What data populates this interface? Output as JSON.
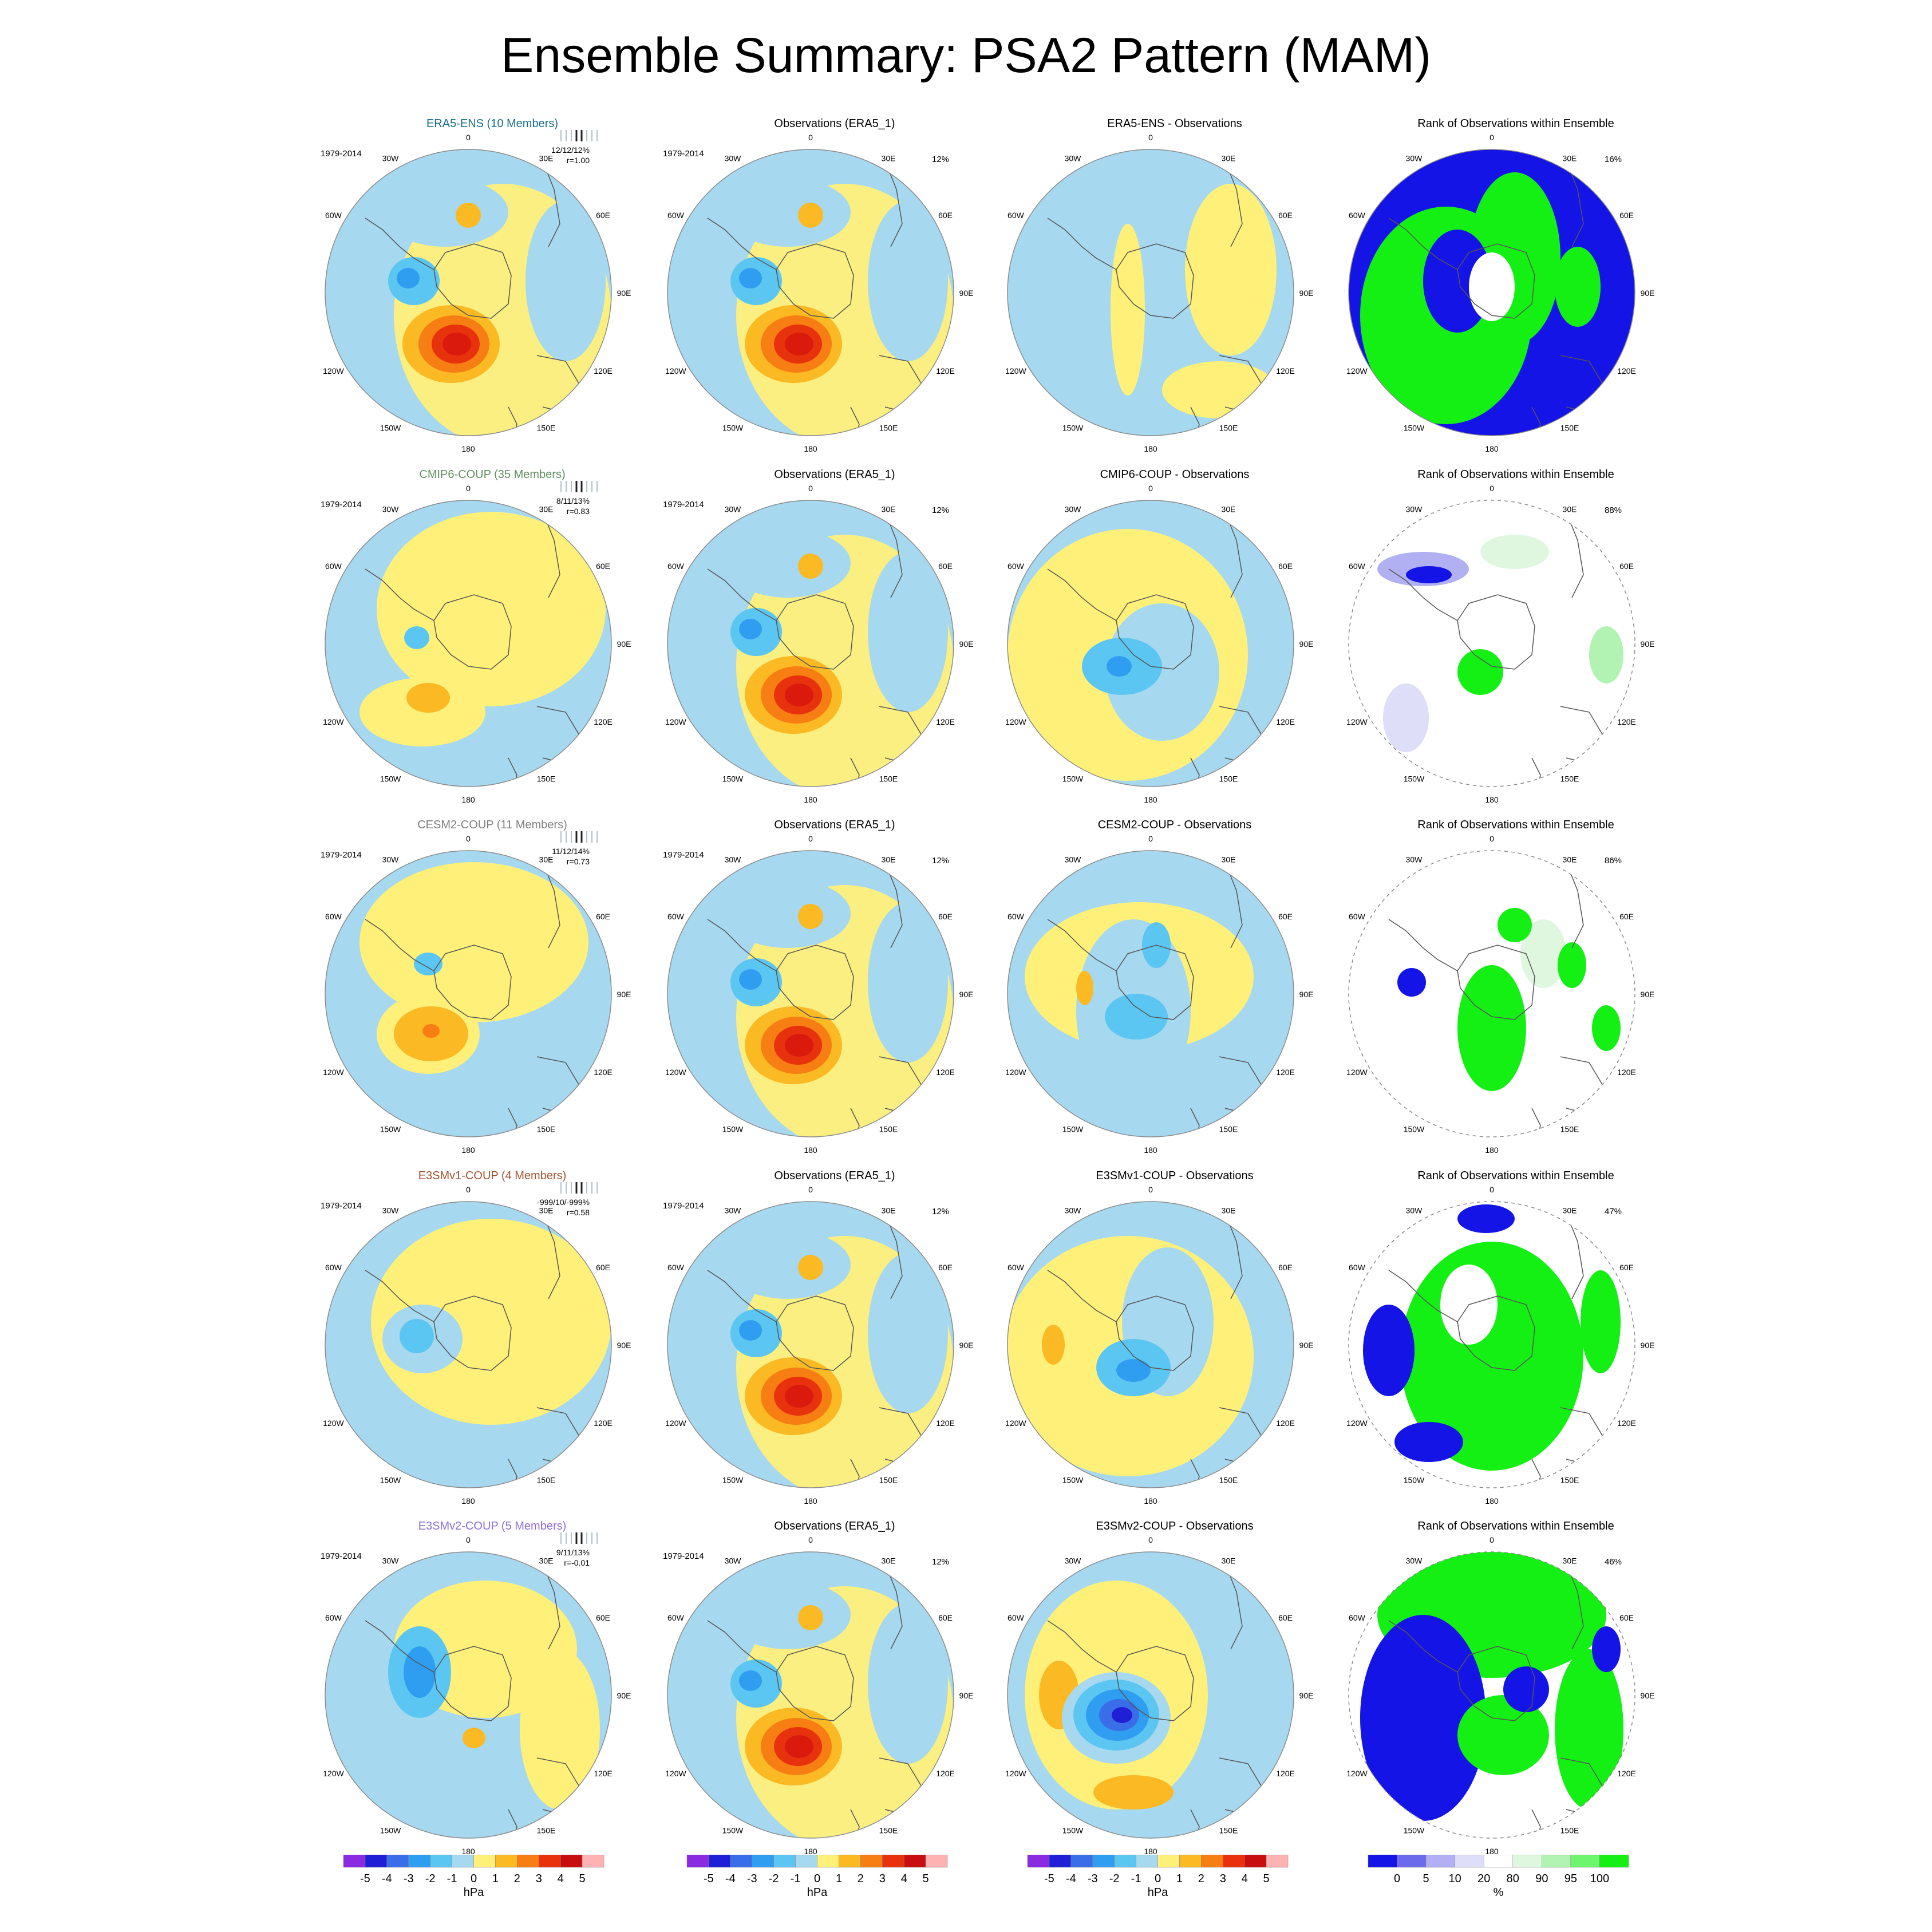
{
  "figure": {
    "title": "Ensemble Summary: PSA2 Pattern (MAM)",
    "colors": {
      "land_outline": "#555555",
      "map_edge": "#8c8c8c",
      "neg_light": "#a6d8ef"
    }
  },
  "lon_labels": [
    "0",
    "30E",
    "60E",
    "90E",
    "120E",
    "150E",
    "180",
    "150W",
    "120W",
    "90W",
    "60W",
    "30W"
  ],
  "rows": [
    {
      "model": "ERA5-ENS (10 Members)",
      "model_color": "#1a6e8e",
      "period": "1979-2014",
      "stats": "12/12/12%",
      "corr": "r=1.00",
      "obs_title": "Observations (ERA5_1)",
      "obs_period": "1979-2014",
      "obs_pct": "12%",
      "diff_title": "ERA5-ENS - Observations",
      "rank_title": "Rank of Observations within Ensemble",
      "rank_pct": "16%"
    },
    {
      "model": "CMIP6-COUP (35 Members)",
      "model_color": "#5f8f5f",
      "period": "1979-2014",
      "stats": "8/11/13%",
      "corr": "r=0.83",
      "obs_title": "Observations (ERA5_1)",
      "obs_period": "1979-2014",
      "obs_pct": "12%",
      "diff_title": "CMIP6-COUP - Observations",
      "rank_title": "Rank of Observations within Ensemble",
      "rank_pct": "88%"
    },
    {
      "model": "CESM2-COUP (11 Members)",
      "model_color": "#7f7f7f",
      "period": "1979-2014",
      "stats": "11/12/14%",
      "corr": "r=0.73",
      "obs_title": "Observations (ERA5_1)",
      "obs_period": "1979-2014",
      "obs_pct": "12%",
      "diff_title": "CESM2-COUP - Observations",
      "rank_title": "Rank of Observations within Ensemble",
      "rank_pct": "86%"
    },
    {
      "model": "E3SMv1-COUP (4 Members)",
      "model_color": "#a0522d",
      "period": "1979-2014",
      "stats": "-999/10/-999%",
      "corr": "r=0.58",
      "obs_title": "Observations (ERA5_1)",
      "obs_period": "1979-2014",
      "obs_pct": "12%",
      "diff_title": "E3SMv1-COUP - Observations",
      "rank_title": "Rank of Observations within Ensemble",
      "rank_pct": "47%"
    },
    {
      "model": "E3SMv2-COUP (5 Members)",
      "model_color": "#8a6fd6",
      "period": "1979-2014",
      "stats": "9/11/13%",
      "corr": "r=-0.01",
      "obs_title": "Observations (ERA5_1)",
      "obs_period": "1979-2014",
      "obs_pct": "12%",
      "diff_title": "E3SMv2-COUP - Observations",
      "rank_title": "Rank of Observations within Ensemble",
      "rank_pct": "46%"
    }
  ],
  "colorbars": [
    {
      "unit": "hPa",
      "ticks": [
        "-5",
        "-4",
        "-3",
        "-2",
        "-1",
        "0",
        "1",
        "2",
        "3",
        "4",
        "5"
      ],
      "colors": [
        "#8a2be2",
        "#1f1fd6",
        "#3a6ee8",
        "#2f9ef0",
        "#5cc6f2",
        "#a6d8ef",
        "#fff07a",
        "#fbb924",
        "#f77e12",
        "#e8320d",
        "#c80f0f",
        "#ffb2b2"
      ]
    },
    {
      "unit": "hPa",
      "ticks": [
        "-5",
        "-4",
        "-3",
        "-2",
        "-1",
        "0",
        "1",
        "2",
        "3",
        "4",
        "5"
      ],
      "colors": [
        "#8a2be2",
        "#1f1fd6",
        "#3a6ee8",
        "#2f9ef0",
        "#5cc6f2",
        "#a6d8ef",
        "#fff07a",
        "#fbb924",
        "#f77e12",
        "#e8320d",
        "#c80f0f",
        "#ffb2b2"
      ]
    },
    {
      "unit": "hPa",
      "ticks": [
        "-5",
        "-4",
        "-3",
        "-2",
        "-1",
        "0",
        "1",
        "2",
        "3",
        "4",
        "5"
      ],
      "colors": [
        "#8a2be2",
        "#1f1fd6",
        "#3a6ee8",
        "#2f9ef0",
        "#5cc6f2",
        "#a6d8ef",
        "#fff07a",
        "#fbb924",
        "#f77e12",
        "#e8320d",
        "#c80f0f",
        "#ffb2b2"
      ]
    },
    {
      "unit": "%",
      "ticks": [
        "0",
        "5",
        "10",
        "20",
        "80",
        "90",
        "95",
        "100"
      ],
      "colors": [
        "#1414e6",
        "#6b6bec",
        "#b0b0f2",
        "#dedef8",
        "#ffffff",
        "#dff7df",
        "#b2f2b2",
        "#6ef56e",
        "#14f014"
      ]
    }
  ]
}
